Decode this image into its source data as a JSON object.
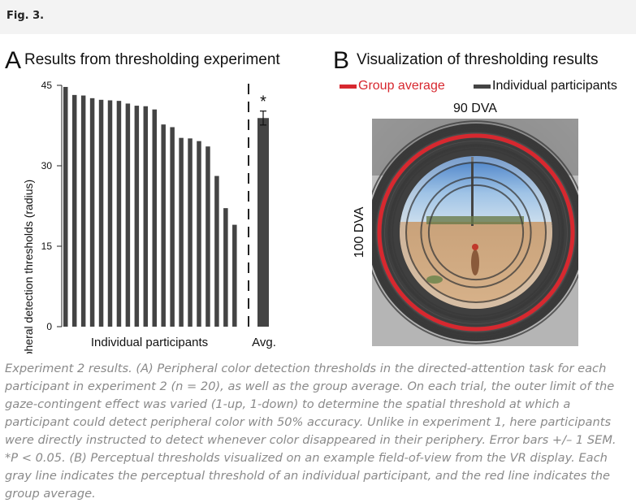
{
  "figure_label": "Fig. 3.",
  "panel_a": {
    "letter": "A",
    "title": "Results from thresholding experiment"
  },
  "panel_b": {
    "letter": "B",
    "title": "Visualization of thresholding results",
    "legend": [
      {
        "label": "Group average",
        "color": "#d7282f"
      },
      {
        "label": "Individual participants",
        "color": "#444444"
      }
    ],
    "top_label": "90 DVA",
    "side_label": "100 DVA"
  },
  "chart_data": {
    "type": "bar",
    "title": "Results from thresholding experiment",
    "ylabel": "Peripheral detection thresholds (radius)",
    "xlabel": "Individual participants",
    "avg_label": "Avg.",
    "ylim": [
      0,
      45
    ],
    "yticks": [
      "0",
      "15",
      "30",
      "45"
    ],
    "values": [
      44.7,
      43.2,
      43.1,
      42.6,
      42.3,
      42.2,
      42.1,
      41.6,
      41.2,
      41.1,
      40.5,
      37.7,
      37.2,
      35.2,
      35.1,
      34.6,
      33.6,
      28.1,
      22.1,
      19.0
    ],
    "avg": {
      "value": 38.9,
      "sem": 1.3,
      "significance": "*"
    },
    "bar_color": "#444444"
  },
  "caption": "Experiment 2 results. (A) Peripheral color detection thresholds in the directed-attention task for each participant in experiment 2 (n = 20), as well as the group average. On each trial, the outer limit of the gaze-contingent effect was varied (1-up, 1-down) to determine the spatial threshold at which a participant could detect peripheral color with 50% accuracy. Unlike in experiment 1, here participants were directly instructed to detect whenever color disappeared in their periphery. Error bars +/– 1 SEM. *P < 0.05. (B) Perceptual thresholds visualized on an example field-of-view from the VR display. Each gray line indicates the perceptual threshold of an individual participant, and the red line indicates the group average."
}
